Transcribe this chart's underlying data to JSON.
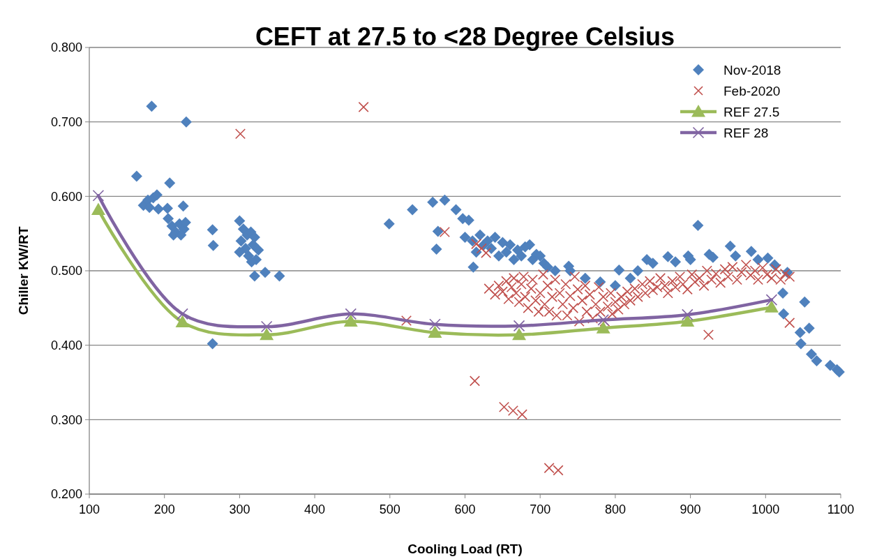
{
  "chart_data": {
    "type": "scatter",
    "title": "CEFT at 27.5 to <28 Degree Celsius",
    "xlabel": "Cooling Load (RT)",
    "ylabel": "Chiller KW/RT",
    "xlim": [
      100,
      1100
    ],
    "xticks": [
      100,
      200,
      300,
      400,
      500,
      600,
      700,
      800,
      900,
      1000,
      1100
    ],
    "ylim": [
      0.2,
      0.8
    ],
    "yticks": [
      {
        "value": 0.2,
        "label": "0.200"
      },
      {
        "value": 0.3,
        "label": "0.300"
      },
      {
        "value": 0.4,
        "label": "0.400"
      },
      {
        "value": 0.5,
        "label": "0.500"
      },
      {
        "value": 0.6,
        "label": "0.600"
      },
      {
        "value": 0.7,
        "label": "0.700"
      },
      {
        "value": 0.8,
        "label": "0.800"
      }
    ],
    "grid": "y",
    "legend": "top right",
    "series": [
      {
        "name": "Nov-2018",
        "marker": "diamond",
        "color": "#4f81bd",
        "x": [
          163,
          183,
          229,
          207,
          172,
          178,
          185,
          190,
          180,
          192,
          204,
          225,
          205,
          210,
          215,
          220,
          226,
          212,
          228,
          222,
          264,
          265,
          264,
          300,
          305,
          310,
          302,
          315,
          320,
          308,
          318,
          325,
          300,
          312,
          322,
          316,
          320,
          334,
          353,
          499,
          530,
          557,
          573,
          588,
          597,
          605,
          564,
          562,
          611,
          686,
          600,
          610,
          615,
          620,
          625,
          630,
          635,
          640,
          645,
          650,
          655,
          660,
          665,
          670,
          675,
          680,
          690,
          695,
          705,
          710,
          720,
          700,
          740,
          760,
          780,
          800,
          820,
          830,
          738,
          805,
          842,
          870,
          910,
          897,
          925,
          953,
          981,
          1003,
          1012,
          1029,
          850,
          880,
          900,
          930,
          960,
          990,
          1023,
          1052,
          1024,
          1058,
          1046,
          1047,
          1061,
          1068,
          1086,
          1095,
          1098
        ],
        "values": [
          0.627,
          0.721,
          0.7,
          0.618,
          0.588,
          0.595,
          0.598,
          0.602,
          0.585,
          0.583,
          0.584,
          0.587,
          0.57,
          0.56,
          0.552,
          0.563,
          0.556,
          0.548,
          0.565,
          0.548,
          0.555,
          0.534,
          0.402,
          0.567,
          0.556,
          0.548,
          0.54,
          0.552,
          0.545,
          0.53,
          0.535,
          0.528,
          0.525,
          0.52,
          0.515,
          0.512,
          0.493,
          0.498,
          0.493,
          0.563,
          0.582,
          0.592,
          0.595,
          0.582,
          0.57,
          0.568,
          0.553,
          0.529,
          0.505,
          0.535,
          0.545,
          0.54,
          0.525,
          0.548,
          0.535,
          0.54,
          0.53,
          0.545,
          0.52,
          0.538,
          0.525,
          0.535,
          0.515,
          0.528,
          0.52,
          0.532,
          0.515,
          0.522,
          0.51,
          0.505,
          0.5,
          0.52,
          0.5,
          0.49,
          0.485,
          0.48,
          0.49,
          0.5,
          0.506,
          0.501,
          0.515,
          0.519,
          0.561,
          0.52,
          0.522,
          0.533,
          0.526,
          0.517,
          0.508,
          0.498,
          0.51,
          0.512,
          0.515,
          0.518,
          0.52,
          0.515,
          0.47,
          0.458,
          0.442,
          0.423,
          0.417,
          0.402,
          0.388,
          0.379,
          0.373,
          0.367,
          0.364
        ]
      },
      {
        "name": "Feb-2020",
        "marker": "cross",
        "color": "#c0504d",
        "x": [
          301,
          465,
          573,
          615,
          622,
          628,
          522,
          613,
          652,
          664,
          676,
          712,
          724,
          924,
          1032,
          632,
          640,
          645,
          650,
          655,
          658,
          662,
          665,
          668,
          672,
          675,
          678,
          680,
          684,
          688,
          690,
          694,
          698,
          700,
          704,
          706,
          710,
          712,
          716,
          720,
          722,
          726,
          730,
          734,
          736,
          740,
          744,
          746,
          750,
          752,
          756,
          760,
          762,
          766,
          770,
          774,
          778,
          780,
          784,
          786,
          790,
          794,
          796,
          800,
          804,
          808,
          812,
          816,
          820,
          826,
          830,
          836,
          840,
          846,
          850,
          856,
          860,
          866,
          870,
          876,
          880,
          886,
          890,
          896,
          902,
          906,
          912,
          918,
          922,
          928,
          934,
          940,
          946,
          950,
          956,
          962,
          968,
          974,
          980,
          986,
          990,
          996,
          1002,
          1008,
          1014,
          1020,
          1026,
          1032
        ],
        "values": [
          0.684,
          0.72,
          0.552,
          0.536,
          0.53,
          0.524,
          0.433,
          0.352,
          0.317,
          0.312,
          0.307,
          0.235,
          0.232,
          0.414,
          0.43,
          0.476,
          0.468,
          0.48,
          0.472,
          0.486,
          0.462,
          0.478,
          0.49,
          0.47,
          0.458,
          0.482,
          0.492,
          0.465,
          0.45,
          0.476,
          0.488,
          0.46,
          0.445,
          0.47,
          0.495,
          0.455,
          0.48,
          0.445,
          0.465,
          0.488,
          0.44,
          0.47,
          0.455,
          0.482,
          0.44,
          0.466,
          0.45,
          0.492,
          0.475,
          0.432,
          0.46,
          0.48,
          0.445,
          0.468,
          0.436,
          0.455,
          0.478,
          0.445,
          0.465,
          0.432,
          0.452,
          0.47,
          0.442,
          0.458,
          0.448,
          0.465,
          0.455,
          0.472,
          0.46,
          0.476,
          0.465,
          0.482,
          0.47,
          0.486,
          0.474,
          0.478,
          0.49,
          0.48,
          0.47,
          0.486,
          0.478,
          0.492,
          0.482,
          0.475,
          0.495,
          0.485,
          0.49,
          0.48,
          0.5,
          0.488,
          0.496,
          0.484,
          0.502,
          0.492,
          0.505,
          0.488,
          0.498,
          0.508,
          0.494,
          0.5,
          0.488,
          0.504,
          0.495,
          0.49,
          0.502,
          0.488,
          0.496,
          0.492
        ]
      },
      {
        "name": "REF 27.5",
        "type": "line",
        "marker": "triangle",
        "color": "#9bbb59",
        "x": [
          112,
          224,
          336,
          448,
          560,
          672,
          784,
          896,
          1008
        ],
        "values": [
          0.582,
          0.431,
          0.414,
          0.432,
          0.417,
          0.414,
          0.423,
          0.432,
          0.451
        ]
      },
      {
        "name": "REF 28",
        "type": "line",
        "marker": "cross",
        "color": "#8064a2",
        "x": [
          112,
          224,
          336,
          448,
          560,
          672,
          784,
          896,
          1008
        ],
        "values": [
          0.601,
          0.442,
          0.425,
          0.442,
          0.428,
          0.426,
          0.434,
          0.441,
          0.461
        ]
      }
    ]
  }
}
